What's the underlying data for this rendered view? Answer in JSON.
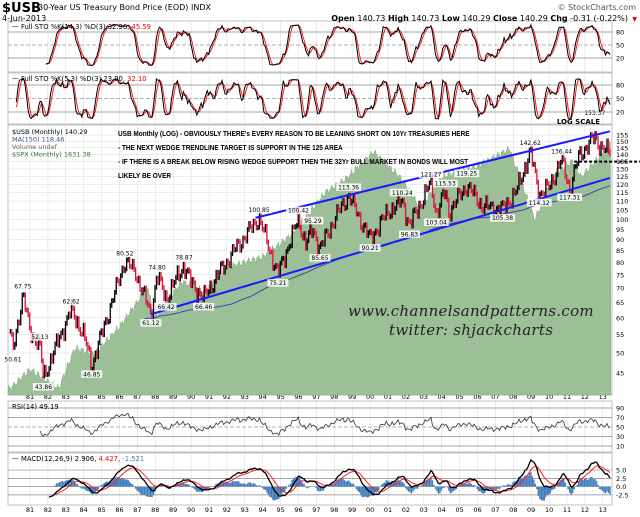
{
  "header": {
    "symbol": "$USB",
    "name": "30-Year US Treasury Bond Price (EOD)",
    "exchange": "INDX",
    "date": "4-Jun-2013",
    "brand": "© StockCharts.com",
    "open_label": "Open",
    "open": "140.73",
    "high_label": "High",
    "high": "140.73",
    "low_label": "Low",
    "low": "140.29",
    "close_label": "Close",
    "close": "140.29",
    "chg_label": "Chg",
    "chg": "-0.31 (-0.22%)",
    "chg_icon": "down-triangle-icon"
  },
  "colors": {
    "up": "#000000",
    "down": "#e0103a",
    "spx_area": "#9dbf98",
    "trendline": "#1a1aff",
    "ma": "#3a4a9a",
    "signal": "#ff2020",
    "histogram": "#3b7bbf",
    "grid": "#d8d8d8"
  },
  "panels": {
    "sto1": {
      "label": "Full STO %K(14,3) %D(3)",
      "k": "32.36,",
      "d": "45.59",
      "ticks": [
        80,
        50,
        20
      ]
    },
    "sto2": {
      "label": "Full STO %K(5,3) %D(3)",
      "k": "23.90,",
      "d": "32.10",
      "ticks": [
        80,
        50,
        20
      ]
    },
    "main": {
      "scale_label": "LOG SCALE",
      "legend": [
        {
          "text": "$USB (Monthly) 140.29",
          "color": "#000000"
        },
        {
          "text": "MA(150) 118.46",
          "color": "#3a4a9a"
        },
        {
          "text": "Volume undef",
          "color": "#666666"
        },
        {
          "text": "$SPX (Monthly) 1631.38",
          "color": "#2f7a2f"
        }
      ],
      "notes": [
        "USB Monthly (LOG) - OBVIOUSLY THERE's EVERY REASON TO BE LEANING SHORT ON 10Yr TREASURIES HERE",
        "- THE NEXT WEDGE TRENDLINE TARGET IS SUPPORT IN THE 125 AREA",
        "- IF THERE IS A BREAK BELOW RISING WEDGE SUPPORT THEN THE 32Yr BULL MARKET IN BONDS WILL MOST",
        "LIKELY BE OVER"
      ],
      "watermark": [
        "www.channelsandpatterns.com",
        "twitter: shjackcharts"
      ]
    },
    "rsi": {
      "label": "RSI(14)",
      "value": "49.19",
      "ticks": [
        90,
        70,
        50,
        30,
        10
      ]
    },
    "macd": {
      "label": "MACD(12,26,9)",
      "macd": "2.906,",
      "signal": "4.427,",
      "hist": "-1.521",
      "ticks": [
        "5.0",
        "2.5",
        "0.0",
        "-2.5"
      ]
    }
  },
  "chart_data": {
    "type": "candlestick",
    "scale": "log",
    "ylim": [
      43,
      158
    ],
    "y_ticks": [
      155,
      150,
      145,
      140,
      135,
      130,
      125,
      120,
      115,
      110,
      105,
      100,
      95,
      90,
      85,
      80,
      75,
      70,
      65,
      60,
      55,
      50,
      45
    ],
    "x_ticks": [
      "81",
      "82",
      "83",
      "84",
      "85",
      "86",
      "87",
      "88",
      "89",
      "90",
      "91",
      "92",
      "93",
      "94",
      "95",
      "96",
      "97",
      "98",
      "99",
      "00",
      "01",
      "02",
      "03",
      "04",
      "05",
      "06",
      "07",
      "08",
      "09",
      "10",
      "11",
      "12",
      "13"
    ],
    "grid": true,
    "price_path": [
      [
        1979.9,
        55
      ],
      [
        1980.05,
        50.61
      ],
      [
        1980.6,
        67.75
      ],
      [
        1981.0,
        56
      ],
      [
        1981.55,
        52.13
      ],
      [
        1981.75,
        43.86
      ],
      [
        1982.3,
        50
      ],
      [
        1983.3,
        62.62
      ],
      [
        1984.0,
        55
      ],
      [
        1984.45,
        46.85
      ],
      [
        1985.3,
        60
      ],
      [
        1986.3,
        80.52
      ],
      [
        1986.9,
        76
      ],
      [
        1987.75,
        61.12
      ],
      [
        1988.1,
        74.8
      ],
      [
        1988.6,
        66.42
      ],
      [
        1989.6,
        78.87
      ],
      [
        1990.0,
        72
      ],
      [
        1990.7,
        66.46
      ],
      [
        1991.5,
        75
      ],
      [
        1992.5,
        86
      ],
      [
        1993.8,
        100.85
      ],
      [
        1994.85,
        75.21
      ],
      [
        1996.0,
        100.42
      ],
      [
        1996.4,
        88
      ],
      [
        1996.8,
        95.29
      ],
      [
        1997.2,
        85.65
      ],
      [
        1998.0,
        100
      ],
      [
        1998.8,
        113.36
      ],
      [
        2000.0,
        90.21
      ],
      [
        2001.0,
        104
      ],
      [
        2001.8,
        110.24
      ],
      [
        2002.2,
        96.83
      ],
      [
        2003.4,
        121.27
      ],
      [
        2003.7,
        103.04
      ],
      [
        2004.2,
        115.53
      ],
      [
        2004.4,
        104
      ],
      [
        2005.4,
        119.25
      ],
      [
        2006.3,
        107
      ],
      [
        2007.4,
        105.38
      ],
      [
        2008.2,
        116
      ],
      [
        2008.95,
        142.62
      ],
      [
        2009.45,
        114.12
      ],
      [
        2010.0,
        118
      ],
      [
        2010.7,
        136.44
      ],
      [
        2011.15,
        117.31
      ],
      [
        2011.7,
        140
      ],
      [
        2012.55,
        153.37
      ],
      [
        2012.9,
        146
      ],
      [
        2013.42,
        140.29
      ]
    ],
    "annotations": [
      {
        "x": 1980.05,
        "v": "50.61",
        "pos": "below"
      },
      {
        "x": 1980.6,
        "v": "67.75",
        "pos": "above"
      },
      {
        "x": 1981.55,
        "v": "52.13",
        "pos": "above"
      },
      {
        "x": 1981.75,
        "v": "43.86",
        "pos": "below"
      },
      {
        "x": 1983.3,
        "v": "62.62",
        "pos": "above"
      },
      {
        "x": 1984.45,
        "v": "46.85",
        "pos": "below"
      },
      {
        "x": 1986.3,
        "v": "80.52",
        "pos": "above"
      },
      {
        "x": 1987.75,
        "v": "61.12",
        "pos": "below"
      },
      {
        "x": 1988.1,
        "v": "74.80",
        "pos": "above"
      },
      {
        "x": 1988.6,
        "v": "66.42",
        "pos": "below"
      },
      {
        "x": 1989.6,
        "v": "78.87",
        "pos": "above"
      },
      {
        "x": 1990.7,
        "v": "66.46",
        "pos": "below"
      },
      {
        "x": 1993.8,
        "v": "100.85",
        "pos": "above"
      },
      {
        "x": 1994.85,
        "v": "75.21",
        "pos": "below"
      },
      {
        "x": 1996.0,
        "v": "100.42",
        "pos": "above"
      },
      {
        "x": 1996.8,
        "v": "95.29",
        "pos": "above"
      },
      {
        "x": 1997.2,
        "v": "85.65",
        "pos": "below"
      },
      {
        "x": 1998.8,
        "v": "113.36",
        "pos": "above"
      },
      {
        "x": 2000.0,
        "v": "90.21",
        "pos": "below"
      },
      {
        "x": 2001.8,
        "v": "110.24",
        "pos": "above"
      },
      {
        "x": 2002.2,
        "v": "96.83",
        "pos": "below"
      },
      {
        "x": 2003.4,
        "v": "121.27",
        "pos": "above"
      },
      {
        "x": 2003.7,
        "v": "103.04",
        "pos": "below"
      },
      {
        "x": 2004.2,
        "v": "115.53",
        "pos": "above"
      },
      {
        "x": 2005.4,
        "v": "119.25",
        "pos": "above"
      },
      {
        "x": 2007.4,
        "v": "105.38",
        "pos": "below"
      },
      {
        "x": 2008.95,
        "v": "142.62",
        "pos": "above"
      },
      {
        "x": 2009.45,
        "v": "114.12",
        "pos": "below"
      },
      {
        "x": 2010.7,
        "v": "136.44",
        "pos": "above"
      },
      {
        "x": 2011.15,
        "v": "117.31",
        "pos": "below"
      },
      {
        "x": 2012.55,
        "v": "153.37",
        "pos": "above"
      }
    ],
    "ma150_end": 118.46,
    "spx_overlay": [
      [
        1979.9,
        105
      ],
      [
        1981.0,
        130
      ],
      [
        1982.6,
        105
      ],
      [
        1983.5,
        165
      ],
      [
        1984.6,
        155
      ],
      [
        1986.0,
        210
      ],
      [
        1987.6,
        330
      ],
      [
        1987.9,
        230
      ],
      [
        1989.5,
        350
      ],
      [
        1990.8,
        310
      ],
      [
        1992.0,
        410
      ],
      [
        1994.0,
        460
      ],
      [
        1995.5,
        580
      ],
      [
        1997.5,
        950
      ],
      [
        1998.6,
        1100
      ],
      [
        2000.2,
        1500
      ],
      [
        2001.8,
        1100
      ],
      [
        2002.8,
        800
      ],
      [
        2004.0,
        1130
      ],
      [
        2006.0,
        1280
      ],
      [
        2007.8,
        1550
      ],
      [
        2009.2,
        700
      ],
      [
        2010.3,
        1170
      ],
      [
        2011.3,
        1350
      ],
      [
        2011.8,
        1130
      ],
      [
        2013.4,
        1631
      ]
    ],
    "trendlines": [
      {
        "name": "wedge-resistance",
        "from": [
          1993.6,
          100.85
        ],
        "to": [
          2013.4,
          158
        ]
      },
      {
        "name": "wedge-support",
        "from": [
          1987.75,
          61.12
        ],
        "to": [
          2013.4,
          124
        ]
      }
    ],
    "horizontal_level": {
      "value": 135,
      "from": 2011.4,
      "style": "dashed"
    }
  }
}
